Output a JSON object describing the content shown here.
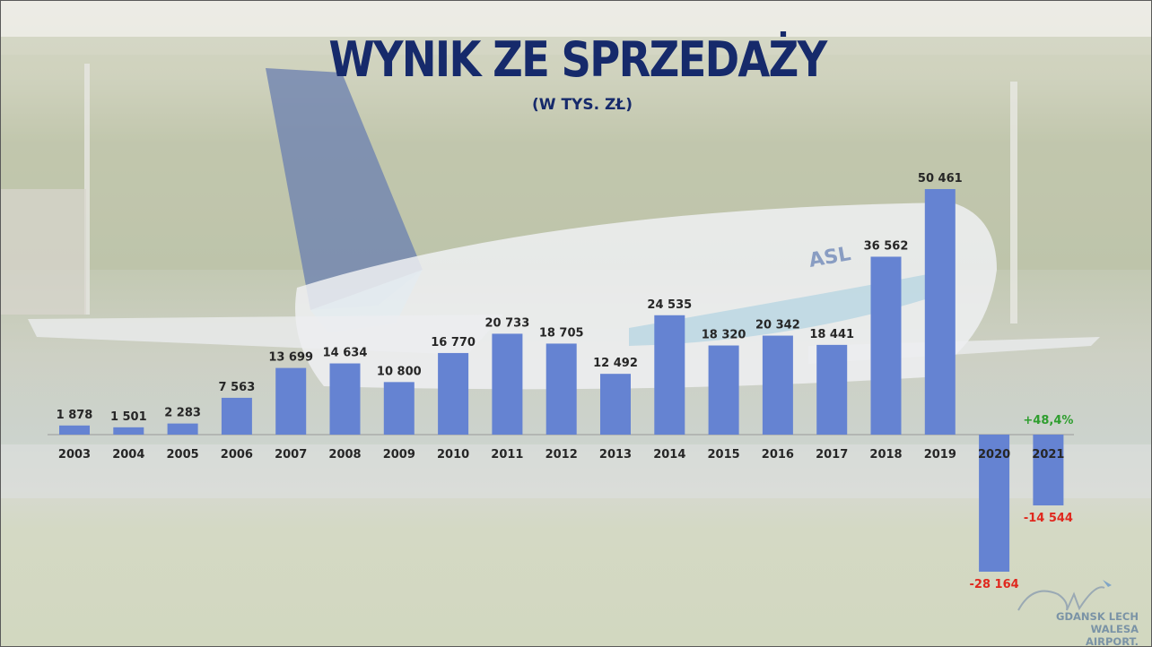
{
  "chart_data": {
    "type": "bar",
    "title": "WYNIK ZE SPRZEDAŻY",
    "subtitle": "(W TYS. ZŁ)",
    "categories": [
      "2003",
      "2004",
      "2005",
      "2006",
      "2007",
      "2008",
      "2009",
      "2010",
      "2011",
      "2012",
      "2013",
      "2014",
      "2015",
      "2016",
      "2017",
      "2018",
      "2019",
      "2020",
      "2021"
    ],
    "values": [
      1878,
      1501,
      2283,
      7563,
      13699,
      14634,
      10800,
      16770,
      20733,
      18705,
      12492,
      24535,
      18320,
      20342,
      18441,
      36562,
      50461,
      -28164,
      -14544
    ],
    "labels": [
      "1 878",
      "1 501",
      "2 283",
      "7 563",
      "13 699",
      "14 634",
      "10 800",
      "16 770",
      "20 733",
      "18 705",
      "12 492",
      "24 535",
      "18 320",
      "20 342",
      "18 441",
      "36 562",
      "50 461",
      "-28 164",
      "-14 544"
    ],
    "annotations": [
      {
        "category": "2021",
        "text": "+48,4%"
      }
    ],
    "ylim": [
      -30000,
      55000
    ],
    "grid": false,
    "colors": {
      "bar": "#6583d2",
      "negative_label": "#e0281e",
      "annotation": "#2e9e2e",
      "title": "#162a6b"
    }
  },
  "logo": {
    "line1": "GDANSK LECH",
    "line2": "WALESA AIRPORT."
  }
}
